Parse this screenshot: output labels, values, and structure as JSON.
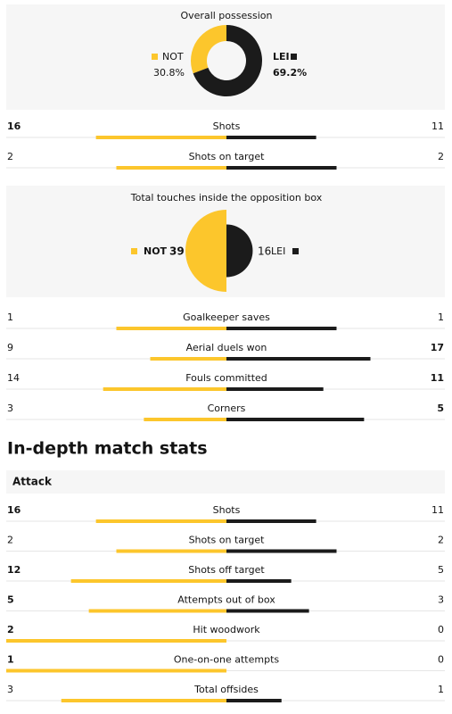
{
  "possession": {
    "title": "Overall possession",
    "home": {
      "team": "NOT",
      "value": 30.8,
      "value_label": "30.8%",
      "color": "#fcc62c"
    },
    "away": {
      "team": "LEI",
      "value": 69.2,
      "value_label": "69.2%",
      "color": "#1b1b1b"
    }
  },
  "summary_stats": [
    {
      "label": "Shots",
      "home": 16,
      "away": 11,
      "highlight": "home"
    },
    {
      "label": "Shots on target",
      "home": 2,
      "away": 2,
      "highlight": null
    }
  ],
  "touches": {
    "title": "Total touches inside the opposition box",
    "home": {
      "team": "NOT",
      "value": 39,
      "color": "#fcc62c"
    },
    "away": {
      "team": "LEI",
      "value": 16,
      "color": "#1b1b1b"
    }
  },
  "summary_stats_2": [
    {
      "label": "Goalkeeper saves",
      "home": 1,
      "away": 1,
      "highlight": null
    },
    {
      "label": "Aerial duels won",
      "home": 9,
      "away": 17,
      "highlight": "away"
    },
    {
      "label": "Fouls committed",
      "home": 14,
      "away": 11,
      "highlight": "away"
    },
    {
      "label": "Corners",
      "home": 3,
      "away": 5,
      "highlight": "away"
    }
  ],
  "heading": "In-depth match stats",
  "attack": {
    "title": "Attack",
    "stats": [
      {
        "label": "Shots",
        "home": 16,
        "away": 11,
        "highlight": "home"
      },
      {
        "label": "Shots on target",
        "home": 2,
        "away": 2,
        "highlight": null
      },
      {
        "label": "Shots off target",
        "home": 12,
        "away": 5,
        "highlight": "home"
      },
      {
        "label": "Attempts out of box",
        "home": 5,
        "away": 3,
        "highlight": "home"
      },
      {
        "label": "Hit woodwork",
        "home": 2,
        "away": 0,
        "highlight": "home"
      },
      {
        "label": "One-on-one attempts",
        "home": 1,
        "away": 0,
        "highlight": "home"
      },
      {
        "label": "Total offsides",
        "home": 3,
        "away": 1,
        "highlight": null
      }
    ]
  }
}
